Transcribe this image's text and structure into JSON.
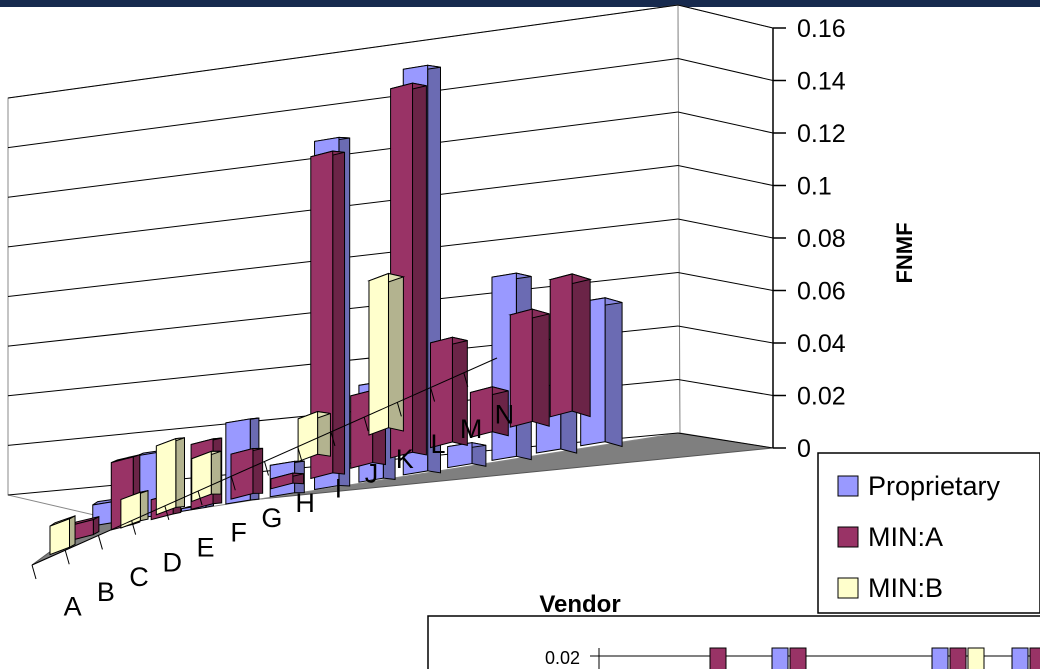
{
  "colors": {
    "topbar": "#172a4e",
    "floor": "#7f7f7f",
    "gridline": "#000000"
  },
  "chart_data": [
    {
      "type": "bar",
      "subtype": "3d-clustered-column",
      "xlabel": "Vendor",
      "ylabel": "FNMF",
      "ylim": [
        0,
        0.16
      ],
      "yticks": [
        "0.16",
        "0.14",
        "0.12",
        "0.1",
        "0.08",
        "0.06",
        "0.04",
        "0.02",
        "0"
      ],
      "categories": [
        "A",
        "B",
        "C",
        "D",
        "E",
        "F",
        "G",
        "H",
        "I",
        "J",
        "K",
        "L",
        "M",
        "N"
      ],
      "legend_position": "right",
      "series": [
        {
          "name": "Proprietary",
          "color": "#9999ff",
          "values": [
            0.008,
            0.024,
            0.001,
            0.031,
            0.012,
            0.133,
            0.037,
            0.155,
            0.008,
            0.07,
            0.025,
            0.055,
            null,
            null
          ]
        },
        {
          "name": "MIN:A",
          "color": "#993366",
          "values": [
            0.006,
            0.027,
            0.008,
            0.026,
            0.018,
            0.004,
            0.129,
            0.029,
            0.148,
            0.042,
            0.018,
            0.045,
            0.055,
            null
          ]
        },
        {
          "name": "MIN:B",
          "color": "#ffffcc",
          "values": [
            0.012,
            null,
            0.012,
            0.029,
            0.018,
            null,
            null,
            0.018,
            null,
            0.065,
            null,
            null,
            null,
            null
          ]
        }
      ]
    },
    {
      "type": "bar",
      "subtype": "inset-zoom",
      "yticks": [
        "0.02"
      ],
      "series_colors": [
        "#993366",
        "#9999ff",
        "#993366",
        "#9999ff",
        "#993366",
        "#ffffcc",
        "#9999ff",
        "#993366"
      ]
    }
  ]
}
